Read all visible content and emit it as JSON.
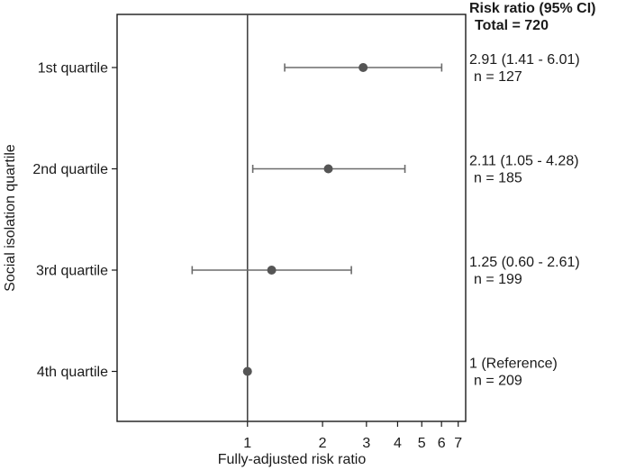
{
  "chart_data": {
    "type": "forest",
    "xlabel": "Fully-adjusted risk ratio",
    "ylabel": "Social isolation quartile",
    "x_scale": "log",
    "xlim": [
      0.3,
      7.5
    ],
    "x_ticks": [
      1,
      2,
      3,
      4,
      5,
      6,
      7
    ],
    "reference_x": 1,
    "right_header": [
      "Risk ratio (95% CI)",
      "Total = 720"
    ],
    "rows": [
      {
        "label": "1st quartile",
        "estimate": 2.91,
        "lower": 1.41,
        "upper": 6.01,
        "ci_text": "2.91 (1.41 - 6.01)",
        "n_text": "n = 127"
      },
      {
        "label": "2nd quartile",
        "estimate": 2.11,
        "lower": 1.05,
        "upper": 4.28,
        "ci_text": "2.11 (1.05 - 4.28)",
        "n_text": "n = 185"
      },
      {
        "label": "3rd quartile",
        "estimate": 1.25,
        "lower": 0.6,
        "upper": 2.61,
        "ci_text": "1.25 (0.60 - 2.61)",
        "n_text": "n = 199"
      },
      {
        "label": "4th quartile",
        "estimate": 1,
        "lower": null,
        "upper": null,
        "ci_text": "1 (Reference)",
        "n_text": "n = 209"
      }
    ],
    "colors": {
      "marker": "#555555",
      "ci": "#6b6b6b",
      "axis": "#1a1a1a"
    },
    "grid": false
  }
}
